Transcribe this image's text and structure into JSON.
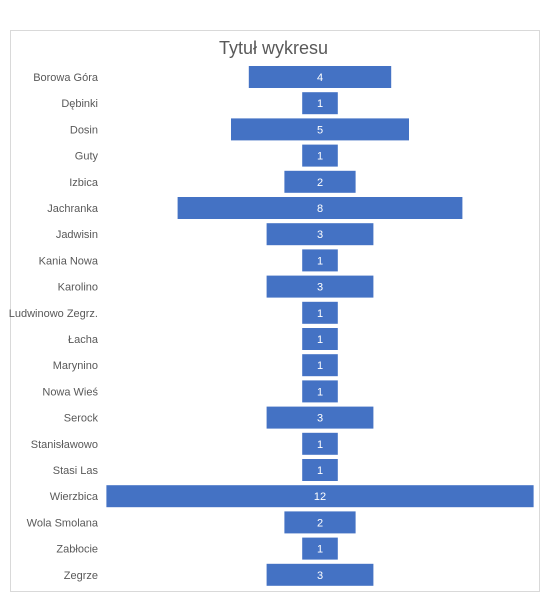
{
  "chart_data": {
    "type": "bar",
    "orientation": "horizontal",
    "alignment": "centered",
    "title": "Tytuł wykresu",
    "categories": [
      "Borowa Góra",
      "Dębinki",
      "Dosin",
      "Guty",
      "Izbica",
      "Jachranka",
      "Jadwisin",
      "Kania Nowa",
      "Karolino",
      "Ludwinowo Zegrz.",
      "Łacha",
      "Marynino",
      "Nowa Wieś",
      "Serock",
      "Stanisławowo",
      "Stasi Las",
      "Wierzbica",
      "Wola Smolana",
      "Zabłocie",
      "Zegrze"
    ],
    "values": [
      4,
      1,
      5,
      1,
      2,
      8,
      3,
      1,
      3,
      1,
      1,
      1,
      1,
      3,
      1,
      1,
      12,
      2,
      1,
      3
    ],
    "data_labels": true,
    "bar_color": "#4472c4",
    "grid": false,
    "legend": "none"
  }
}
